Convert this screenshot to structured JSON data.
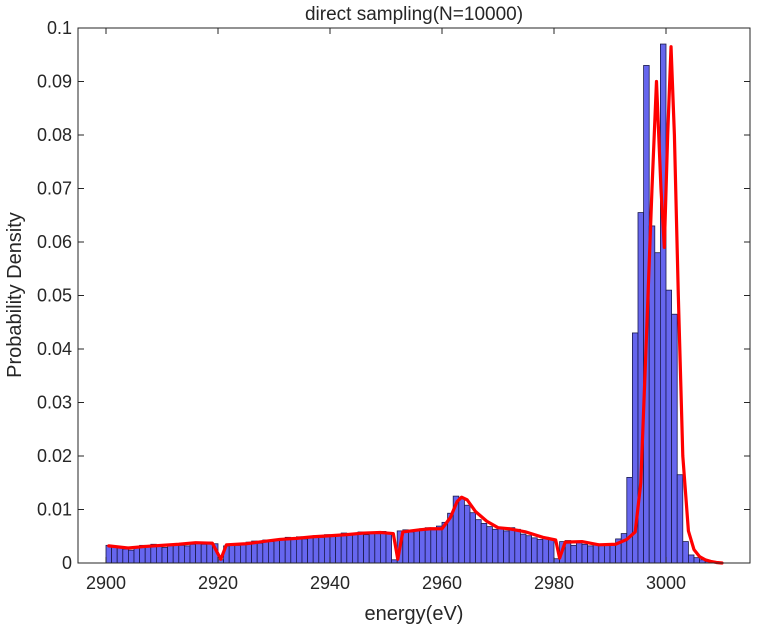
{
  "chart_data": {
    "type": "bar",
    "title": "direct sampling(N=10000)",
    "xlabel": "energy(eV)",
    "ylabel": "Probability Density",
    "xlim": [
      2895,
      3015
    ],
    "ylim": [
      0,
      0.1
    ],
    "xticks": [
      2900,
      2920,
      2940,
      2960,
      2980,
      3000
    ],
    "xtick_labels": [
      "2900",
      "2920",
      "2940",
      "2960",
      "2980",
      "3000"
    ],
    "yticks": [
      0,
      0.01,
      0.02,
      0.03,
      0.04,
      0.05,
      0.06,
      0.07,
      0.08,
      0.09,
      0.1
    ],
    "ytick_labels": [
      "0",
      "0.01",
      "0.02",
      "0.03",
      "0.04",
      "0.05",
      "0.06",
      "0.07",
      "0.08",
      "0.09",
      "0.1"
    ],
    "grid": false,
    "bin_width": 1,
    "bin_start": 2900.5,
    "bar_color": "#6666ee",
    "bar_edge_color": "#1a1a4d",
    "line_color": "#ff0000",
    "histogram_values": [
      0.0033,
      0.0031,
      0.0028,
      0.0026,
      0.0024,
      0.003,
      0.0033,
      0.0031,
      0.0035,
      0.0031,
      0.0029,
      0.0034,
      0.0036,
      0.0033,
      0.0032,
      0.0035,
      0.0038,
      0.0035,
      0.0039,
      0.0036,
      0.0006,
      0.0032,
      0.0035,
      0.0033,
      0.0036,
      0.0039,
      0.0041,
      0.0037,
      0.0043,
      0.004,
      0.0042,
      0.0046,
      0.0048,
      0.0044,
      0.0049,
      0.0045,
      0.0047,
      0.0051,
      0.0048,
      0.0053,
      0.005,
      0.0052,
      0.0056,
      0.0052,
      0.0055,
      0.0058,
      0.0053,
      0.0057,
      0.0055,
      0.0059,
      0.0056,
      0.0006,
      0.006,
      0.0062,
      0.0058,
      0.0062,
      0.0064,
      0.0066,
      0.0062,
      0.0069,
      0.0076,
      0.0093,
      0.0125,
      0.0122,
      0.0108,
      0.0094,
      0.0081,
      0.0074,
      0.0068,
      0.0063,
      0.0066,
      0.006,
      0.0066,
      0.0063,
      0.0054,
      0.0051,
      0.0047,
      0.0044,
      0.0048,
      0.0046,
      0.0008,
      0.004,
      0.0042,
      0.0033,
      0.0038,
      0.0035,
      0.0032,
      0.0036,
      0.0033,
      0.0035,
      0.0036,
      0.0045,
      0.0055,
      0.016,
      0.043,
      0.0655,
      0.093,
      0.063,
      0.058,
      0.097,
      0.051,
      0.0465,
      0.0165,
      0.004,
      0.0015,
      0.001,
      0.0006,
      0.0003,
      0.0002,
      0.0001
    ],
    "density_curve": {
      "x": [
        2900.5,
        2904,
        2907,
        2910,
        2913,
        2916,
        2919,
        2920.5,
        2921.5,
        2925,
        2928,
        2931,
        2934,
        2937,
        2940,
        2943,
        2946,
        2949,
        2951.3,
        2952.1,
        2953,
        2956,
        2958,
        2960,
        2961.5,
        2962.7,
        2963.5,
        2964.5,
        2966,
        2968,
        2970,
        2972,
        2975,
        2978,
        2980.3,
        2981,
        2982,
        2985,
        2988,
        2991,
        2993,
        2994.5,
        2995.5,
        2996.5,
        2997.5,
        2998.3,
        2999.1,
        2999.7,
        3000.3,
        3000.9,
        3001.5,
        3002.2,
        3003,
        3004,
        3005,
        3006,
        3007,
        3008,
        3009,
        3010
      ],
      "y": [
        0.0032,
        0.0028,
        0.0031,
        0.0033,
        0.0035,
        0.0038,
        0.0037,
        0.0007,
        0.0034,
        0.0036,
        0.004,
        0.0044,
        0.0046,
        0.0049,
        0.0051,
        0.0053,
        0.0056,
        0.0057,
        0.0055,
        0.0007,
        0.0058,
        0.0062,
        0.0064,
        0.0064,
        0.0085,
        0.0115,
        0.0123,
        0.0118,
        0.0096,
        0.0078,
        0.0066,
        0.0064,
        0.0058,
        0.0048,
        0.0043,
        0.0009,
        0.0039,
        0.004,
        0.0034,
        0.0035,
        0.0044,
        0.0058,
        0.015,
        0.042,
        0.07,
        0.09,
        0.07,
        0.059,
        0.08,
        0.0965,
        0.08,
        0.05,
        0.02,
        0.006,
        0.0025,
        0.0012,
        0.0006,
        0.0003,
        0.0001,
        0.0
      ]
    }
  }
}
